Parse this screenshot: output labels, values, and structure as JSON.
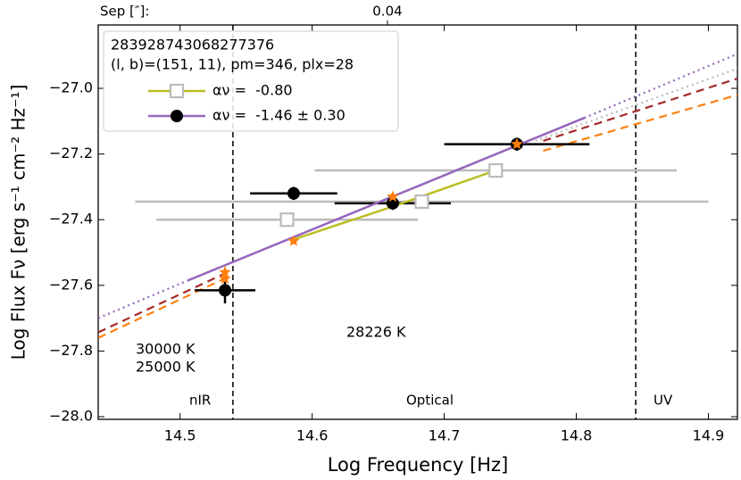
{
  "chart_data": {
    "type": "scatter",
    "xlabel": "Log Frequency [Hz]",
    "ylabel": "Log Flux Fν [erg s⁻¹ cm⁻² Hz⁻¹]",
    "xlim": [
      14.438,
      14.922
    ],
    "ylim": [
      -28.008,
      -26.807
    ],
    "xticks": [
      14.5,
      14.6,
      14.7,
      14.8,
      14.9
    ],
    "yticks": [
      {
        "value": -28.0,
        "label": "−28.0"
      },
      {
        "value": -27.8,
        "label": "−27.8"
      },
      {
        "value": -27.6,
        "label": "−27.6"
      },
      {
        "value": -27.4,
        "label": "−27.4"
      },
      {
        "value": -27.2,
        "label": "−27.2"
      },
      {
        "value": -27.0,
        "label": "−27.0"
      }
    ],
    "top_axis": {
      "label": "Sep [″]:",
      "ticks": [
        {
          "value": 14.657,
          "label": "0.04"
        }
      ]
    },
    "legend_title": [
      "283928743068277376",
      "(l, b)=(151, 11), pm=346, plx=28"
    ],
    "series": [
      {
        "name": "αν =  -0.80",
        "color": "#bbbbbb",
        "marker": "square",
        "line_color": "#bcbd22",
        "x": [
          14.581,
          14.683,
          14.739
        ],
        "values": [
          -27.4,
          -27.345,
          -27.25
        ],
        "xerr": [
          0.099,
          0.217,
          0.137
        ],
        "fit": {
          "x": [
            14.586,
            14.661,
            14.739
          ],
          "values": [
            -27.46,
            -27.36,
            -27.25
          ]
        }
      },
      {
        "name": "αν =  -1.46 ± 0.30",
        "color": "#000000",
        "marker": "circle",
        "line_color": "#9467bd",
        "x": [
          14.534,
          14.586,
          14.661,
          14.755
        ],
        "values": [
          -27.615,
          -27.32,
          -27.35,
          -27.17
        ],
        "xerr": [
          0.023,
          0.033,
          0.044,
          0.055
        ],
        "yerr": [
          0.04,
          0.02,
          0.02,
          0.02
        ],
        "fit": {
          "x": [
            14.506,
            14.806
          ],
          "values": [
            -27.585,
            -27.09
          ]
        }
      },
      {
        "color": "#ff7f0e",
        "marker": "star",
        "x": [
          14.534,
          14.534,
          14.586,
          14.661,
          14.755
        ],
        "values": [
          -27.56,
          -27.58,
          -27.465,
          -27.33,
          -27.17
        ]
      }
    ],
    "lines": [
      {
        "color": "#9467bd",
        "style": "dotted",
        "x": [
          14.438,
          14.506,
          null,
          14.806,
          14.922
        ],
        "values": [
          -27.7,
          -27.585,
          null,
          -27.09,
          -26.895
        ]
      },
      {
        "color": "#bbbbbb",
        "style": "dotted",
        "x": [
          14.769,
          14.922
        ],
        "values": [
          -27.16,
          -26.94
        ]
      },
      {
        "color": "#a52a2a",
        "style": "dashed",
        "x": [
          14.438,
          14.536,
          null,
          14.775,
          14.922
        ],
        "values": [
          -27.743,
          -27.56,
          null,
          -27.16,
          -26.97
        ]
      },
      {
        "color": "#ff7f0e",
        "style": "dashed",
        "x": [
          14.438,
          14.536,
          null,
          14.775,
          14.922
        ],
        "values": [
          -27.76,
          -27.575,
          null,
          -27.19,
          -27.02
        ]
      }
    ],
    "vlines": [
      14.54,
      14.845
    ],
    "regions": [
      "nIR",
      "Optical",
      "UV"
    ],
    "annotations": [
      {
        "text": "30000 K",
        "color": "#a52a2a"
      },
      {
        "text": "25000 K",
        "color": "#ff7f0e"
      },
      {
        "text": "28226 K",
        "color": "#444444"
      }
    ]
  }
}
